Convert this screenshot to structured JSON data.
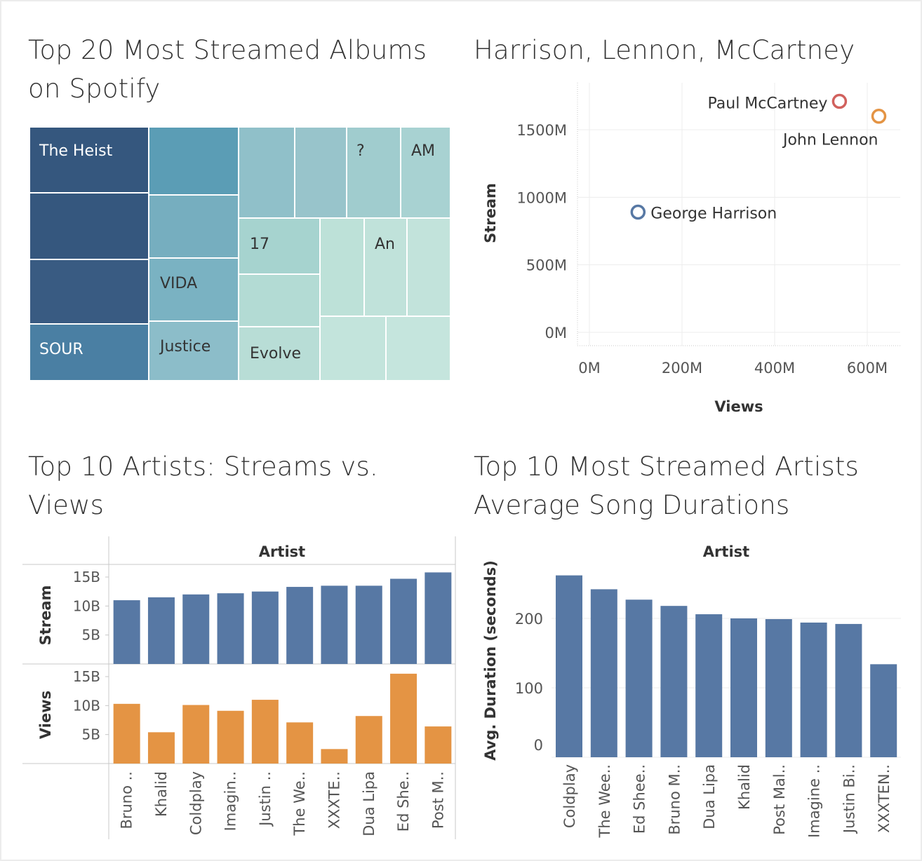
{
  "titles": {
    "treemap": [
      "Top 20 Most Streamed Albums",
      "on Spotify"
    ],
    "scatter": [
      "Harrison, Lennon, McCartney"
    ],
    "streams_views": [
      "Top 10 Artists: Streams vs.",
      "Views"
    ],
    "durations": [
      "Top 10 Most Streamed Artists",
      "Average Song Durations"
    ]
  },
  "colors": {
    "blue": "#5778a4",
    "orange": "#e49444",
    "red": "#d1615d",
    "grid": "#ececec",
    "axis": "#c8c8c8"
  },
  "chart_data": [
    {
      "type": "treemap",
      "title": "Top 20 Most Streamed Albums on Spotify",
      "labels": [
        "The Heist",
        "?",
        "AM",
        "17",
        "An",
        "VIDA",
        "SOUR",
        "Justice",
        "Evolve"
      ],
      "note": "20 tiles; only the labels shown are printed"
    },
    {
      "type": "scatter",
      "title": "Harrison, Lennon, McCartney",
      "xlabel": "Views",
      "ylabel": "Stream",
      "xlim": [
        0,
        650000000
      ],
      "ylim": [
        0,
        1800000000
      ],
      "x_ticks": [
        "0M",
        "200M",
        "400M",
        "600M"
      ],
      "y_ticks": [
        "0M",
        "500M",
        "1000M",
        "1500M"
      ],
      "grid": true,
      "points": [
        {
          "label": "Paul McCartney",
          "x": 540000000,
          "y": 1710000000,
          "color": "#d1615d"
        },
        {
          "label": "John Lennon",
          "x": 625000000,
          "y": 1600000000,
          "color": "#e49444"
        },
        {
          "label": "George Harrison",
          "x": 105000000,
          "y": 890000000,
          "color": "#5778a4"
        }
      ]
    },
    {
      "type": "bar",
      "title": "Top 10 Artists: Streams vs. Views",
      "header": "Artist",
      "categories": [
        "Bruno ..",
        "Khalid",
        "Coldplay",
        "Imagin..",
        "Justin ..",
        "The We..",
        "XXXTE..",
        "Dua Lipa",
        "Ed She..",
        "Post M.."
      ],
      "series": [
        {
          "name": "Stream",
          "values": [
            11.0,
            11.5,
            12.0,
            12.2,
            12.5,
            13.3,
            13.5,
            13.5,
            14.7,
            15.8
          ],
          "ylim": [
            0,
            16
          ],
          "ticks": [
            "5B",
            "10B",
            "15B"
          ],
          "color": "#5778a4"
        },
        {
          "name": "Views",
          "values": [
            10.3,
            5.4,
            10.1,
            9.1,
            11.0,
            7.1,
            2.5,
            8.2,
            15.5,
            6.4
          ],
          "ylim": [
            0,
            16
          ],
          "ticks": [
            "5B",
            "10B",
            "15B"
          ],
          "color": "#e49444"
        }
      ],
      "units": "B"
    },
    {
      "type": "bar",
      "title": "Top 10 Most Streamed Artists Average Song Durations",
      "header": "Artist",
      "ylabel": "Avg. Duration (seconds)",
      "ylim": [
        0,
        280
      ],
      "y_ticks": [
        "0",
        "100",
        "200"
      ],
      "categories": [
        "Coldplay",
        "The Wee..",
        "Ed Shee..",
        "Bruno M..",
        "Dua Lipa",
        "Khalid",
        "Post Mal..",
        "Imagine ..",
        "Justin Bi..",
        "XXXTEN.."
      ],
      "values": [
        262,
        242,
        227,
        218,
        206,
        200,
        199,
        194,
        192,
        134
      ],
      "color": "#5778a4"
    }
  ]
}
